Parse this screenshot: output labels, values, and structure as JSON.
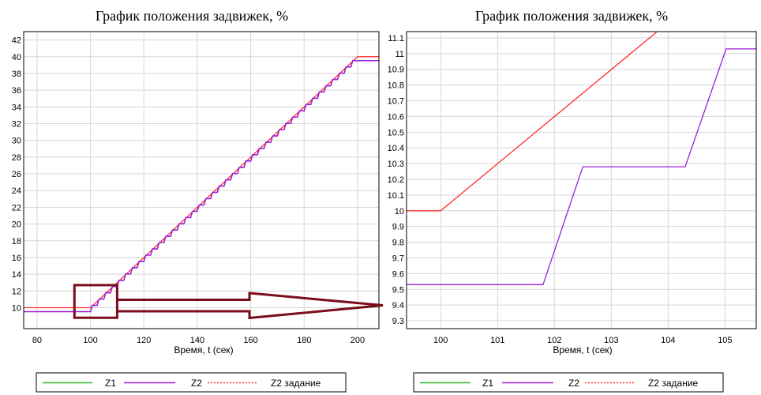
{
  "chart_data": [
    {
      "type": "line",
      "title": "График положения задвижек, %",
      "xlabel": "Время, t (сек)",
      "ylabel": "",
      "xlim": [
        75,
        208
      ],
      "ylim": [
        7.5,
        43
      ],
      "x_ticks": [
        80,
        100,
        120,
        140,
        160,
        180,
        200
      ],
      "y_ticks": [
        10,
        12,
        14,
        16,
        18,
        20,
        22,
        24,
        26,
        28,
        30,
        32,
        34,
        36,
        38,
        40,
        42
      ],
      "grid": true,
      "legend_position": "bottom",
      "series": [
        {
          "name": "Z1",
          "color": "#2eb82e",
          "style": "solid",
          "x": [],
          "y": []
        },
        {
          "name": "Z2",
          "color": "#9b1fd8",
          "style": "solid",
          "stair": {
            "x_start": 100,
            "x_end": 200,
            "y_start": 9.53,
            "y_end": 39.53,
            "step_seconds": 2.5,
            "ramp_seconds": 0.7
          },
          "x": [
            75,
            100,
            200,
            208
          ],
          "y": [
            9.53,
            9.53,
            39.53,
            39.53
          ]
        },
        {
          "name": "Z2 задание",
          "color": "#ff2a2a",
          "style": "solid",
          "x": [
            75,
            100,
            200,
            208
          ],
          "y": [
            10,
            10,
            40,
            40
          ]
        }
      ],
      "annotation": {
        "type": "zoom-box-arrow",
        "color": "#7a0d1a",
        "x_range": [
          94,
          110
        ],
        "y_range": [
          8.8,
          12.7
        ]
      }
    },
    {
      "type": "line",
      "title": "График положения задвижек, %",
      "xlabel": "Время, t (сек)",
      "ylabel": "",
      "xlim": [
        99.4,
        105.55
      ],
      "ylim": [
        9.25,
        11.14
      ],
      "x_ticks": [
        100,
        101,
        102,
        103,
        104,
        105
      ],
      "y_ticks": [
        9.3,
        9.4,
        9.5,
        9.6,
        9.7,
        9.8,
        9.9,
        10,
        10.1,
        10.2,
        10.3,
        10.4,
        10.5,
        10.6,
        10.7,
        10.8,
        10.9,
        11,
        11.1
      ],
      "y_tick_labels": [
        "9.3",
        "9.4",
        "9.5",
        "9.6",
        "9.7",
        "9.8",
        "9.9",
        "10",
        "10.1",
        "10.2",
        "10.3",
        "10.4",
        "10.5",
        "10.6",
        "10.7",
        "10.8",
        "10.9",
        "11",
        "11.1"
      ],
      "grid": true,
      "legend_position": "bottom",
      "series": [
        {
          "name": "Z1",
          "color": "#2eb82e",
          "style": "solid",
          "x": [],
          "y": []
        },
        {
          "name": "Z2",
          "color": "#9b1fd8",
          "style": "solid",
          "x": [
            99.4,
            101.8,
            102.5,
            104.3,
            105.02,
            105.55
          ],
          "y": [
            9.53,
            9.53,
            10.28,
            10.28,
            11.03,
            11.03
          ]
        },
        {
          "name": "Z2 задание",
          "color": "#ff2a2a",
          "style": "solid",
          "x": [
            99.4,
            100,
            103.94
          ],
          "y": [
            10,
            10,
            11.18
          ]
        }
      ]
    }
  ]
}
